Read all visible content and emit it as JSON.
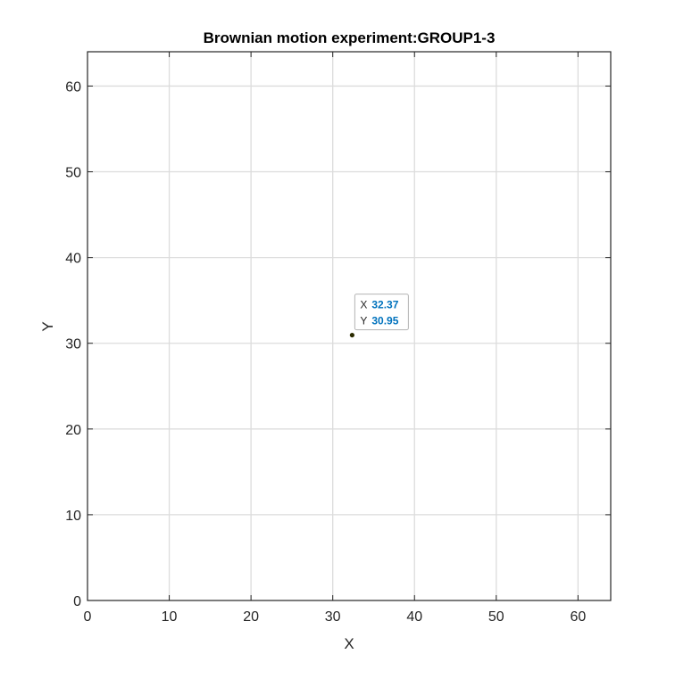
{
  "chart_data": {
    "type": "scatter",
    "title": "Brownian motion experiment:GROUP1-3",
    "xlabel": "X",
    "ylabel": "Y",
    "xlim": [
      0,
      64
    ],
    "ylim": [
      0,
      64
    ],
    "xticks": [
      0,
      10,
      20,
      30,
      40,
      50,
      60
    ],
    "yticks": [
      0,
      10,
      20,
      30,
      40,
      50,
      60
    ],
    "grid": true,
    "colors": {
      "grid": "#dcdcdc",
      "axis": "#262626",
      "marker": "#2b2b00",
      "datatip_value": "#0072bd"
    },
    "points": [
      {
        "x": 32.37,
        "y": 30.95
      }
    ],
    "datatip": {
      "x_label": "X",
      "x_value": "32.37",
      "y_label": "Y",
      "y_value": "30.95"
    }
  }
}
